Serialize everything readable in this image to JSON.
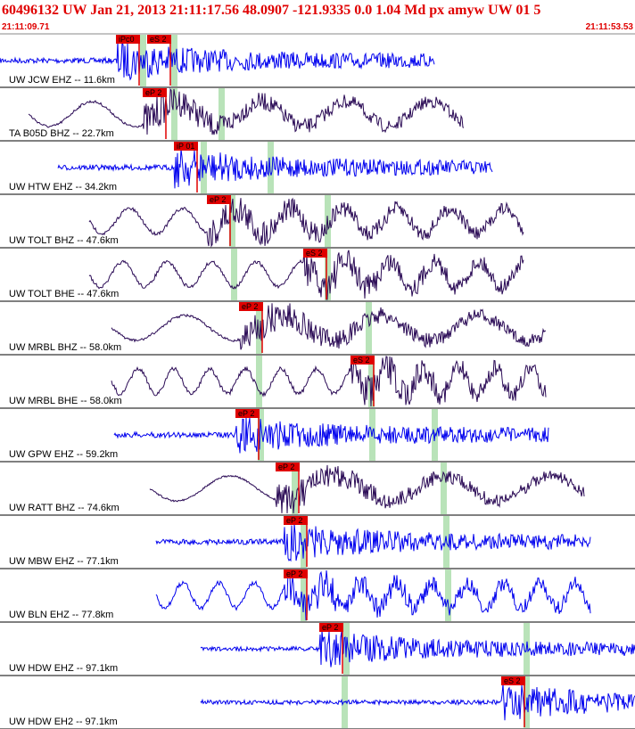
{
  "header": {
    "title": "60496132 UW Jan 21, 2013 21:11:17.56   48.0907 -121.9335  0.0 1.04 Md px amyw UW 01   5",
    "start_time": "21:11:09.71",
    "end_time": "21:11:53.53"
  },
  "traces": [
    {
      "label": "UW JCW EHZ -- 11.6km",
      "picks": [
        "iPc0",
        "eS 2"
      ]
    },
    {
      "label": "TA B05D BHZ -- 22.7km",
      "picks": [
        "eP 2"
      ]
    },
    {
      "label": "UW HTW EHZ -- 34.2km",
      "picks": [
        "iP 01"
      ]
    },
    {
      "label": "UW TOLT BHZ -- 47.6km",
      "picks": [
        "eP 2"
      ]
    },
    {
      "label": "UW TOLT BHE -- 47.6km",
      "picks": [
        "eS 2"
      ]
    },
    {
      "label": "UW MRBL BHZ -- 58.0km",
      "picks": [
        "eP 2"
      ]
    },
    {
      "label": "UW MRBL BHE -- 58.0km",
      "picks": [
        "eS 2"
      ]
    },
    {
      "label": "UW GPW EHZ -- 59.2km",
      "picks": [
        "eP 2"
      ]
    },
    {
      "label": "UW RATT BHZ -- 74.6km",
      "picks": [
        "eP 2"
      ]
    },
    {
      "label": "UW MBW EHZ -- 77.1km",
      "picks": [
        "eP 2"
      ]
    },
    {
      "label": "UW BLN EHZ -- 77.8km",
      "picks": [
        "eP 2"
      ]
    },
    {
      "label": "UW HDW EHZ -- 97.1km",
      "picks": [
        "eP 2"
      ]
    },
    {
      "label": "UW HDW EH2 -- 97.1km",
      "picks": [
        "eS 2"
      ]
    }
  ]
}
